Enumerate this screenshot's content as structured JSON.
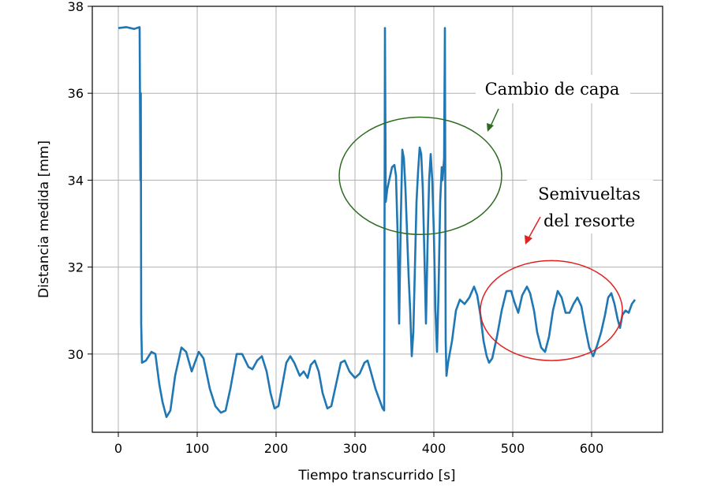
{
  "chart_data": {
    "type": "line",
    "title": "",
    "xlabel": "Tiempo transcurrido [s]",
    "ylabel": "Distancia medida [mm]",
    "xlim": [
      -33,
      690
    ],
    "ylim": [
      28.2,
      38
    ],
    "xticks": [
      0,
      100,
      200,
      300,
      400,
      500,
      600
    ],
    "yticks": [
      30,
      32,
      34,
      36,
      38
    ],
    "grid": true,
    "series_color": "#1f77b4",
    "series": [
      {
        "values_xy": [
          [
            0,
            37.5
          ],
          [
            10,
            37.52
          ],
          [
            20,
            37.48
          ],
          [
            27,
            37.52
          ],
          [
            28,
            34.0
          ],
          [
            28.5,
            36.0
          ],
          [
            29,
            30.7
          ],
          [
            30,
            29.8
          ],
          [
            35,
            29.85
          ],
          [
            42,
            30.05
          ],
          [
            47,
            30.0
          ],
          [
            52,
            29.3
          ],
          [
            56,
            28.9
          ],
          [
            61,
            28.55
          ],
          [
            66,
            28.7
          ],
          [
            72,
            29.5
          ],
          [
            80,
            30.15
          ],
          [
            86,
            30.05
          ],
          [
            93,
            29.6
          ],
          [
            97,
            29.8
          ],
          [
            102,
            30.05
          ],
          [
            108,
            29.9
          ],
          [
            116,
            29.2
          ],
          [
            123,
            28.8
          ],
          [
            130,
            28.65
          ],
          [
            136,
            28.7
          ],
          [
            142,
            29.2
          ],
          [
            150,
            30.0
          ],
          [
            157,
            30.0
          ],
          [
            165,
            29.7
          ],
          [
            170,
            29.65
          ],
          [
            176,
            29.85
          ],
          [
            182,
            29.95
          ],
          [
            188,
            29.6
          ],
          [
            193,
            29.1
          ],
          [
            198,
            28.75
          ],
          [
            203,
            28.8
          ],
          [
            208,
            29.3
          ],
          [
            213,
            29.8
          ],
          [
            218,
            29.95
          ],
          [
            223,
            29.8
          ],
          [
            230,
            29.5
          ],
          [
            235,
            29.6
          ],
          [
            240,
            29.45
          ],
          [
            244,
            29.75
          ],
          [
            249,
            29.85
          ],
          [
            254,
            29.6
          ],
          [
            259,
            29.1
          ],
          [
            265,
            28.75
          ],
          [
            270,
            28.8
          ],
          [
            276,
            29.3
          ],
          [
            282,
            29.8
          ],
          [
            287,
            29.85
          ],
          [
            293,
            29.6
          ],
          [
            300,
            29.45
          ],
          [
            306,
            29.55
          ],
          [
            312,
            29.8
          ],
          [
            316,
            29.85
          ],
          [
            320,
            29.6
          ],
          [
            326,
            29.2
          ],
          [
            331,
            28.95
          ],
          [
            335,
            28.75
          ],
          [
            337,
            28.7
          ],
          [
            338,
            37.5
          ],
          [
            339,
            33.5
          ],
          [
            341,
            33.8
          ],
          [
            344,
            34.05
          ],
          [
            347,
            34.3
          ],
          [
            350,
            34.35
          ],
          [
            352,
            34.1
          ],
          [
            354,
            32.8
          ],
          [
            356,
            30.7
          ],
          [
            358,
            33.0
          ],
          [
            360,
            34.7
          ],
          [
            362,
            34.5
          ],
          [
            364,
            33.8
          ],
          [
            366,
            32.8
          ],
          [
            368,
            31.8
          ],
          [
            370,
            31.0
          ],
          [
            372,
            29.95
          ],
          [
            374,
            30.5
          ],
          [
            376,
            32.0
          ],
          [
            378,
            33.5
          ],
          [
            380,
            34.2
          ],
          [
            382,
            34.75
          ],
          [
            384,
            34.6
          ],
          [
            386,
            33.8
          ],
          [
            388,
            32.3
          ],
          [
            390,
            30.7
          ],
          [
            392,
            32.5
          ],
          [
            394,
            34.0
          ],
          [
            396,
            34.6
          ],
          [
            398,
            34.0
          ],
          [
            400,
            32.8
          ],
          [
            402,
            31.0
          ],
          [
            404,
            30.05
          ],
          [
            406,
            31.5
          ],
          [
            408,
            33.5
          ],
          [
            410,
            34.3
          ],
          [
            411,
            34.0
          ],
          [
            413,
            34.5
          ],
          [
            414,
            37.5
          ],
          [
            415,
            30.3
          ],
          [
            416,
            29.5
          ],
          [
            418,
            29.8
          ],
          [
            423,
            30.3
          ],
          [
            428,
            31.0
          ],
          [
            433,
            31.25
          ],
          [
            439,
            31.15
          ],
          [
            445,
            31.3
          ],
          [
            451,
            31.55
          ],
          [
            455,
            31.35
          ],
          [
            459,
            30.9
          ],
          [
            463,
            30.3
          ],
          [
            467,
            29.95
          ],
          [
            470,
            29.8
          ],
          [
            474,
            29.9
          ],
          [
            480,
            30.4
          ],
          [
            486,
            31.0
          ],
          [
            492,
            31.45
          ],
          [
            498,
            31.45
          ],
          [
            502,
            31.2
          ],
          [
            507,
            30.95
          ],
          [
            512,
            31.35
          ],
          [
            518,
            31.55
          ],
          [
            522,
            31.4
          ],
          [
            527,
            31.0
          ],
          [
            531,
            30.5
          ],
          [
            536,
            30.15
          ],
          [
            541,
            30.05
          ],
          [
            546,
            30.4
          ],
          [
            551,
            31.0
          ],
          [
            557,
            31.45
          ],
          [
            562,
            31.3
          ],
          [
            567,
            30.95
          ],
          [
            572,
            30.95
          ],
          [
            577,
            31.15
          ],
          [
            582,
            31.3
          ],
          [
            587,
            31.1
          ],
          [
            592,
            30.6
          ],
          [
            597,
            30.15
          ],
          [
            602,
            29.95
          ],
          [
            607,
            30.2
          ],
          [
            612,
            30.5
          ],
          [
            617,
            30.9
          ],
          [
            621,
            31.3
          ],
          [
            625,
            31.4
          ],
          [
            629,
            31.15
          ],
          [
            633,
            30.8
          ],
          [
            636,
            30.6
          ],
          [
            639,
            30.9
          ],
          [
            643,
            31.0
          ],
          [
            647,
            30.95
          ],
          [
            651,
            31.15
          ],
          [
            655,
            31.25
          ]
        ]
      }
    ],
    "annotations": [
      {
        "lines": [
          "Cambio de capa"
        ],
        "ellipse_center": [
          383,
          34.1
        ],
        "ellipse_radius": [
          103,
          1.35
        ],
        "color": "#2e6b1f"
      },
      {
        "lines": [
          "Semivueltas",
          "del resorte"
        ],
        "ellipse_center": [
          549,
          31.0
        ],
        "ellipse_radius": [
          90,
          1.15
        ],
        "color": "#e32020"
      }
    ]
  }
}
